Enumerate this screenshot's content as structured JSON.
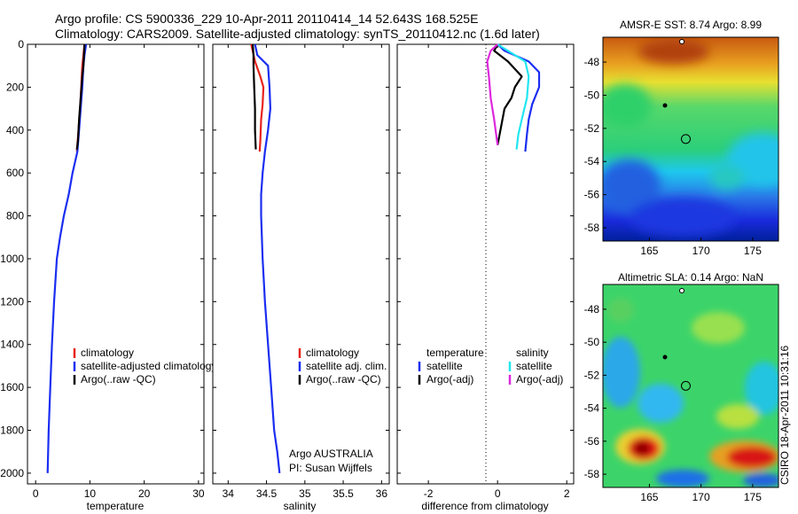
{
  "title_line1": "Argo profile: CS 5900336_229 10-Apr-2011 20110414_14 52.643S 168.525E",
  "title_line2": "Climatology: CARS2009. Satellite-adjusted climatology: synTS_20110412.nc (1.6d later)",
  "side_stamp": "CSIRO 18-Apr-2011 10:31:16",
  "colors": {
    "climatology": "#e8231c",
    "satellite": "#1a2ef0",
    "argo": "#000000",
    "cyan": "#22e6f0",
    "magenta": "#dd28dd"
  },
  "chart_data": [
    {
      "type": "line",
      "name": "temperature-panel",
      "xlabel": "temperature",
      "xlim": [
        -1.5,
        31
      ],
      "ylim": [
        0,
        2050
      ],
      "y_reversed": true,
      "xticks": [
        "0",
        "10",
        "20",
        "30"
      ],
      "xtick_values": [
        0,
        10,
        20,
        30
      ],
      "yticks": [
        "0",
        "200",
        "400",
        "600",
        "800",
        "1000",
        "1200",
        "1400",
        "1600",
        "1800",
        "2000"
      ],
      "ytick_values": [
        0,
        200,
        400,
        600,
        800,
        1000,
        1200,
        1400,
        1600,
        1800,
        2000
      ],
      "legend": [
        "climatology",
        "satellite-adjusted climatology",
        "Argo(..raw -QC)"
      ],
      "series": [
        {
          "name": "climatology",
          "color": "#e8231c",
          "x": [
            9.0,
            8.8,
            8.6,
            8.4,
            8.2,
            7.9,
            7.6
          ],
          "y": [
            0,
            50,
            100,
            200,
            300,
            400,
            500
          ]
        },
        {
          "name": "satellite-adjusted climatology",
          "color": "#1a2ef0",
          "x": [
            9.3,
            9.0,
            8.8,
            8.6,
            8.3,
            8.0,
            7.7,
            6.8,
            6.1,
            5.2,
            4.5,
            3.9,
            3.4,
            3.0,
            2.7,
            2.4,
            2.2
          ],
          "y": [
            0,
            50,
            100,
            200,
            300,
            400,
            500,
            600,
            700,
            800,
            900,
            1000,
            1200,
            1400,
            1600,
            1800,
            2000
          ]
        },
        {
          "name": "Argo(..raw -QC)",
          "color": "#000000",
          "x": [
            9.0,
            8.9,
            8.8,
            8.6,
            8.3,
            8.0,
            7.8,
            7.6
          ],
          "y": [
            0,
            50,
            100,
            150,
            250,
            350,
            450,
            490
          ]
        }
      ]
    },
    {
      "type": "line",
      "name": "salinity-panel",
      "xlabel": "salinity",
      "xlim": [
        33.8,
        36.1
      ],
      "ylim": [
        0,
        2050
      ],
      "y_reversed": true,
      "xticks": [
        "34",
        "34.5",
        "35",
        "35.5",
        "36"
      ],
      "xtick_values": [
        34,
        34.5,
        35,
        35.5,
        36
      ],
      "legend": [
        "climatology",
        "satellite adj. clim.",
        "Argo(..raw -QC)"
      ],
      "annotations": [
        "Argo AUSTRALIA",
        "PI: Susan Wijffels"
      ],
      "series": [
        {
          "name": "climatology",
          "color": "#e8231c",
          "x": [
            34.3,
            34.32,
            34.35,
            34.42,
            34.46,
            34.45,
            34.43,
            34.42,
            34.41
          ],
          "y": [
            0,
            30,
            80,
            150,
            200,
            280,
            350,
            450,
            500
          ]
        },
        {
          "name": "satellite adj. clim.",
          "color": "#1a2ef0",
          "x": [
            34.35,
            34.38,
            34.52,
            34.54,
            34.55,
            34.52,
            34.48,
            34.45,
            34.43,
            34.43,
            34.45,
            34.48,
            34.52,
            34.56,
            34.6,
            34.64,
            34.67
          ],
          "y": [
            0,
            50,
            100,
            200,
            300,
            400,
            500,
            600,
            700,
            800,
            1000,
            1200,
            1400,
            1600,
            1800,
            1900,
            2000
          ]
        },
        {
          "name": "Argo(..raw -QC)",
          "color": "#000000",
          "x": [
            34.32,
            34.33,
            34.33,
            34.34,
            34.35,
            34.35,
            34.36
          ],
          "y": [
            0,
            50,
            100,
            200,
            300,
            400,
            490
          ]
        }
      ]
    },
    {
      "type": "line",
      "name": "difference-panel",
      "xlabel": "difference from climatology",
      "xlim": [
        -2.9,
        2.2
      ],
      "ylim": [
        0,
        2050
      ],
      "y_reversed": true,
      "xticks": [
        "-2",
        "0",
        "2"
      ],
      "xtick_values": [
        -2,
        0,
        2
      ],
      "legend": [
        "temperature",
        "satellite",
        "Argo(-adj)",
        "salinity",
        "satellite",
        "Argo(-adj)"
      ],
      "series": [
        {
          "name": "temperature satellite",
          "color": "#1a2ef0",
          "x": [
            0.0,
            0.2,
            0.9,
            1.2,
            1.2,
            1.0,
            0.9,
            0.85,
            0.8
          ],
          "y": [
            0,
            30,
            80,
            130,
            200,
            280,
            350,
            420,
            500
          ]
        },
        {
          "name": "temperature Argo(-adj)",
          "color": "#000000",
          "x": [
            0.0,
            -0.1,
            0.3,
            0.7,
            0.5,
            0.4,
            0.2,
            0.0
          ],
          "y": [
            0,
            30,
            80,
            150,
            200,
            250,
            300,
            470
          ]
        },
        {
          "name": "salinity satellite",
          "color": "#22e6f0",
          "x": [
            0.0,
            0.3,
            0.8,
            0.9,
            0.85,
            0.7,
            0.6,
            0.55
          ],
          "y": [
            0,
            30,
            80,
            150,
            250,
            350,
            420,
            490
          ]
        },
        {
          "name": "salinity Argo(-adj)",
          "color": "#dd28dd",
          "x": [
            0.0,
            -0.2,
            -0.3,
            -0.25,
            -0.2,
            -0.1,
            0.0
          ],
          "y": [
            0,
            30,
            80,
            150,
            250,
            350,
            470
          ]
        }
      ]
    },
    {
      "type": "heatmap",
      "name": "sst-map",
      "title": "AMSR-E SST: 8.74 Argo: 8.99",
      "xlim": [
        160.5,
        177.5
      ],
      "ylim": [
        -58.8,
        -46.5
      ],
      "xticks": [
        "165",
        "170",
        "175"
      ],
      "xtick_values": [
        165,
        170,
        175
      ],
      "yticks": [
        "-48",
        "-50",
        "-52",
        "-54",
        "-56",
        "-58"
      ],
      "ytick_values": [
        -48,
        -50,
        -52,
        -54,
        -56,
        -58
      ],
      "argo_position": [
        168.525,
        -52.643
      ]
    },
    {
      "type": "heatmap",
      "name": "sla-map",
      "title": "Altimetric SLA: 0.14 Argo: NaN",
      "xlim": [
        160.5,
        177.5
      ],
      "ylim": [
        -58.8,
        -46.5
      ],
      "xticks": [
        "165",
        "170",
        "175"
      ],
      "xtick_values": [
        165,
        170,
        175
      ],
      "yticks": [
        "-48",
        "-50",
        "-52",
        "-54",
        "-56",
        "-58"
      ],
      "ytick_values": [
        -48,
        -50,
        -52,
        -54,
        -56,
        -58
      ],
      "argo_position": [
        168.525,
        -52.643
      ]
    }
  ]
}
